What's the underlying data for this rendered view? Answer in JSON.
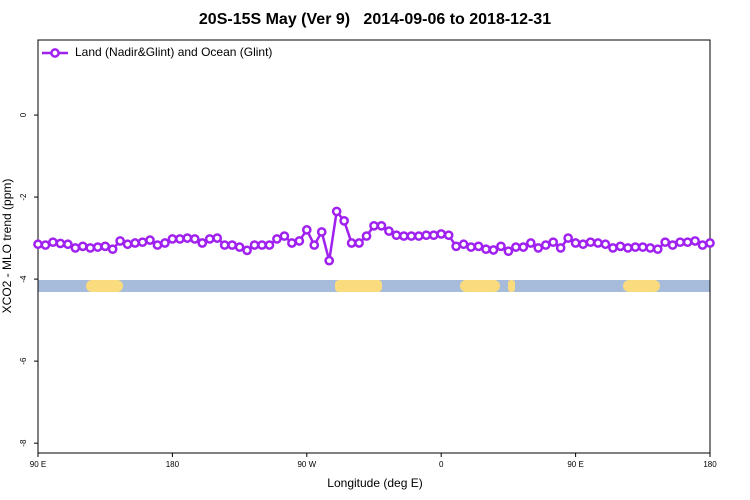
{
  "chart_data": {
    "type": "line",
    "title": "20S-15S May (Ver 9)   2014-09-06 to 2018-12-31",
    "x_label": "Longitude (deg E)",
    "y_label": "XCO2 - MLO trend (ppm)",
    "x": [
      90,
      95,
      100,
      105,
      110,
      115,
      120,
      125,
      130,
      135,
      140,
      145,
      150,
      155,
      160,
      165,
      170,
      175,
      180,
      185,
      190,
      195,
      200,
      205,
      210,
      215,
      220,
      225,
      230,
      235,
      240,
      245,
      250,
      255,
      260,
      265,
      270,
      275,
      280,
      285,
      290,
      295,
      300,
      305,
      310,
      315,
      320,
      325,
      330,
      335,
      340,
      345,
      350,
      355,
      360,
      365,
      370,
      375,
      380,
      385,
      390,
      395,
      400,
      405,
      410,
      415,
      420,
      425,
      430,
      435,
      440,
      445,
      450,
      455,
      460,
      465,
      470,
      475,
      480,
      485,
      490,
      495,
      500,
      505,
      510,
      515,
      520,
      525,
      530,
      535,
      540
    ],
    "series": [
      {
        "name": "Land (Nadir&Glint) and Ocean (Glint)",
        "color": "#a020f0",
        "values": [
          -3.15,
          -3.17,
          -3.1,
          -3.13,
          -3.15,
          -3.24,
          -3.2,
          -3.24,
          -3.22,
          -3.2,
          -3.27,
          -3.07,
          -3.15,
          -3.12,
          -3.1,
          -3.05,
          -3.17,
          -3.12,
          -3.02,
          -3.02,
          -3.0,
          -3.02,
          -3.12,
          -3.02,
          -3.0,
          -3.17,
          -3.17,
          -3.22,
          -3.3,
          -3.17,
          -3.17,
          -3.17,
          -3.02,
          -2.95,
          -3.12,
          -3.07,
          -2.8,
          -3.17,
          -2.85,
          -3.55,
          -2.35,
          -2.58,
          -3.12,
          -3.12,
          -2.95,
          -2.7,
          -2.7,
          -2.83,
          -2.93,
          -2.95,
          -2.95,
          -2.95,
          -2.93,
          -2.93,
          -2.9,
          -2.93,
          -3.2,
          -3.15,
          -3.22,
          -3.2,
          -3.27,
          -3.29,
          -3.2,
          -3.32,
          -3.22,
          -3.22,
          -3.12,
          -3.24,
          -3.17,
          -3.1,
          -3.24,
          -3.0,
          -3.12,
          -3.15,
          -3.1,
          -3.12,
          -3.15,
          -3.24,
          -3.2,
          -3.24,
          -3.22,
          -3.22,
          -3.24,
          -3.27,
          -3.1,
          -3.17,
          -3.1,
          -3.1,
          -3.07,
          -3.17,
          -3.12
        ]
      }
    ],
    "xlim": [
      90,
      540
    ],
    "xticks": [
      {
        "value": 90,
        "label": "90 E"
      },
      180,
      {
        "value": 270,
        "label": "90 W"
      },
      {
        "value": 360,
        "label": "0"
      },
      {
        "value": 450,
        "label": "90 E"
      },
      {
        "value": 540,
        "label": "180"
      }
    ],
    "ylim": [
      -8.24,
      1.83
    ],
    "yticks": [
      0,
      -2,
      -4,
      -6,
      -8
    ],
    "legend": "top-left"
  }
}
